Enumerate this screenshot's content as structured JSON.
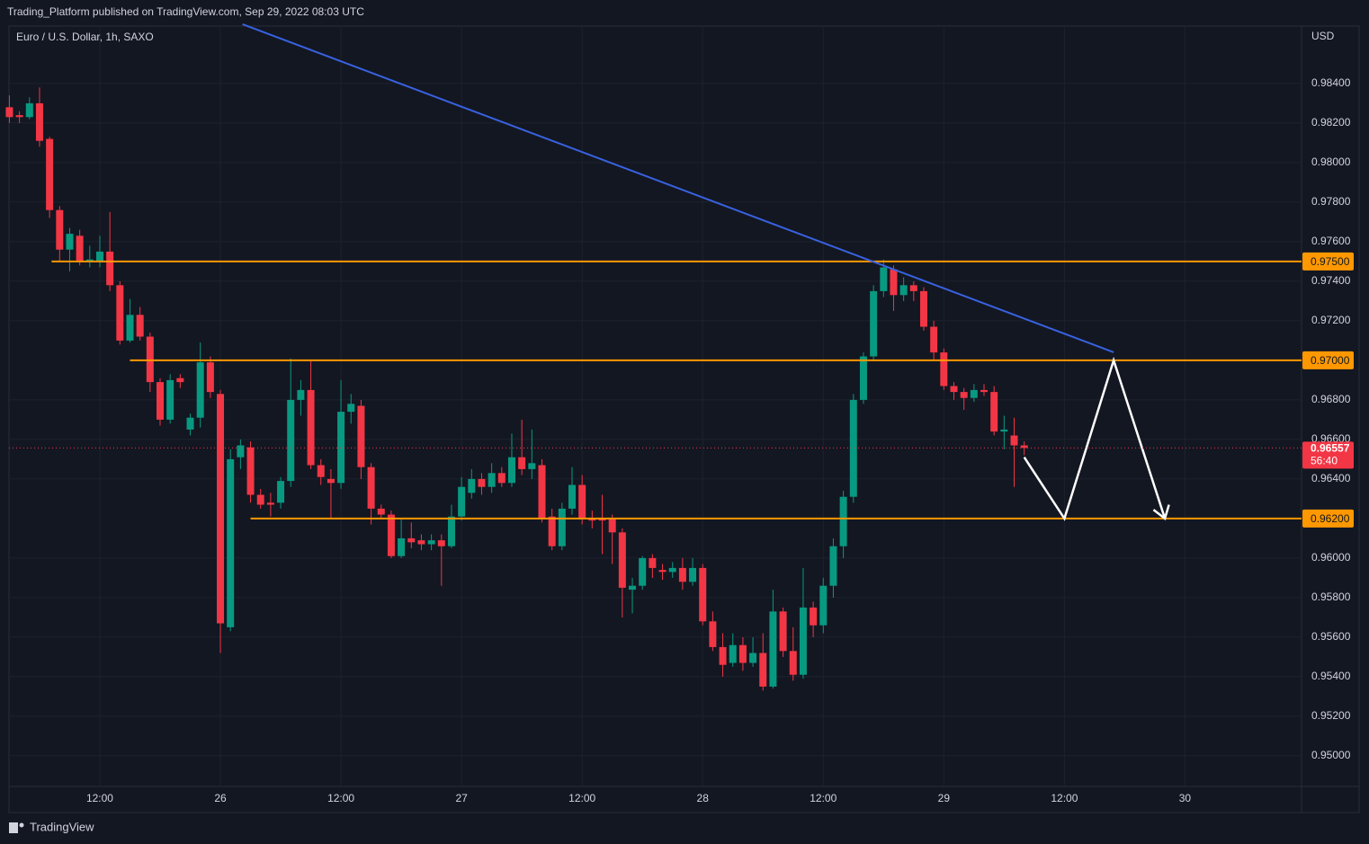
{
  "header": {
    "published": "Trading_Platform published on TradingView.com, Sep 29, 2022 08:03 UTC",
    "brand": "TradingView"
  },
  "chart_data": {
    "type": "candlestick",
    "symbol": "Euro / U.S. Dollar, 1h, SAXO",
    "currency": "USD",
    "up_color": "#089981",
    "down_color": "#f23645",
    "x": [
      3,
      4,
      5,
      6,
      7,
      8,
      9,
      10,
      11,
      12,
      13,
      14,
      15,
      16,
      17,
      18,
      19,
      20,
      21,
      22,
      23,
      24,
      25,
      26,
      27,
      28,
      29,
      30,
      31,
      32,
      33,
      34,
      35,
      36,
      37,
      38,
      39,
      40,
      41,
      42,
      43,
      44,
      45,
      46,
      47,
      48,
      49,
      50,
      51,
      52,
      53,
      54,
      55,
      56,
      57,
      58,
      59,
      60,
      61,
      62,
      63,
      64,
      65,
      66,
      67,
      68,
      69,
      70,
      71,
      72,
      73,
      74,
      75,
      76,
      77,
      78,
      79,
      80,
      81,
      82,
      83,
      84,
      85,
      86,
      87,
      88,
      89,
      90,
      91,
      92,
      93,
      94,
      95,
      96,
      97,
      98,
      99,
      100,
      101,
      102,
      103,
      104
    ],
    "open": [
      0.9828,
      0.9824,
      0.9823,
      0.983,
      0.9812,
      0.9776,
      0.9756,
      0.9763,
      0.975,
      0.975,
      0.9755,
      0.9738,
      0.971,
      0.9723,
      0.9712,
      0.9689,
      0.967,
      0.9691,
      0.9665,
      0.9671,
      0.9699,
      0.9683,
      0.9565,
      0.9651,
      0.9656,
      0.9632,
      0.9628,
      0.9628,
      0.9639,
      0.968,
      0.9685,
      0.9647,
      0.964,
      0.9638,
      0.9674,
      0.9677,
      0.9646,
      0.9625,
      0.9622,
      0.9601,
      0.961,
      0.9609,
      0.9607,
      0.9609,
      0.9606,
      0.9621,
      0.9633,
      0.964,
      0.9636,
      0.9643,
      0.9638,
      0.9651,
      0.9645,
      0.9647,
      0.9621,
      0.9606,
      0.9625,
      0.9637,
      0.962,
      0.962,
      0.962,
      0.9613,
      0.9584,
      0.9586,
      0.96,
      0.9594,
      0.9593,
      0.9595,
      0.9588,
      0.9595,
      0.9568,
      0.9555,
      0.9547,
      0.9556,
      0.9547,
      0.9552,
      0.9535,
      0.9573,
      0.9553,
      0.9541,
      0.9575,
      0.9566,
      0.9586,
      0.9606,
      0.9631,
      0.968,
      0.9702,
      0.9735,
      0.9746,
      0.9733,
      0.9738,
      0.9735,
      0.9717,
      0.9704,
      0.9687,
      0.9684,
      0.9681,
      0.9685,
      0.9684,
      0.9664,
      0.9662,
      0.9657
    ],
    "high": [
      0.9834,
      0.9826,
      0.9833,
      0.9838,
      0.9813,
      0.9778,
      0.9767,
      0.9766,
      0.9758,
      0.9763,
      0.9775,
      0.974,
      0.9731,
      0.9727,
      0.9714,
      0.9691,
      0.9693,
      0.9693,
      0.9673,
      0.9709,
      0.9702,
      0.9685,
      0.9655,
      0.966,
      0.9659,
      0.9635,
      0.9633,
      0.9641,
      0.9701,
      0.969,
      0.97,
      0.965,
      0.9645,
      0.969,
      0.9683,
      0.968,
      0.9648,
      0.9627,
      0.9624,
      0.962,
      0.9618,
      0.9612,
      0.9612,
      0.9612,
      0.9627,
      0.9641,
      0.9645,
      0.9643,
      0.9648,
      0.9646,
      0.9663,
      0.967,
      0.9665,
      0.965,
      0.9625,
      0.9628,
      0.9646,
      0.9642,
      0.9624,
      0.9632,
      0.9622,
      0.9615,
      0.959,
      0.9601,
      0.9602,
      0.9597,
      0.9598,
      0.96,
      0.96,
      0.9597,
      0.9573,
      0.9562,
      0.9562,
      0.956,
      0.956,
      0.9562,
      0.9584,
      0.9575,
      0.9565,
      0.9595,
      0.9578,
      0.959,
      0.961,
      0.9634,
      0.9683,
      0.9704,
      0.9738,
      0.9751,
      0.9748,
      0.9742,
      0.974,
      0.9737,
      0.972,
      0.9706,
      0.9689,
      0.9686,
      0.9688,
      0.9688,
      0.9687,
      0.9672,
      0.9671,
      0.9659
    ],
    "low": [
      0.982,
      0.982,
      0.9822,
      0.9808,
      0.9772,
      0.975,
      0.9745,
      0.9748,
      0.9747,
      0.9747,
      0.9735,
      0.9708,
      0.9709,
      0.971,
      0.9684,
      0.9667,
      0.9668,
      0.9686,
      0.9662,
      0.9666,
      0.9681,
      0.9552,
      0.9563,
      0.9645,
      0.9628,
      0.9625,
      0.9621,
      0.9625,
      0.9636,
      0.9672,
      0.9645,
      0.9637,
      0.962,
      0.9635,
      0.9668,
      0.964,
      0.9617,
      0.962,
      0.96,
      0.96,
      0.9605,
      0.9604,
      0.9604,
      0.9586,
      0.9605,
      0.9619,
      0.963,
      0.9632,
      0.9633,
      0.9636,
      0.9636,
      0.9642,
      0.964,
      0.9618,
      0.9604,
      0.9604,
      0.9622,
      0.9617,
      0.9615,
      0.9602,
      0.9597,
      0.957,
      0.9572,
      0.9584,
      0.959,
      0.9589,
      0.959,
      0.9584,
      0.9586,
      0.9566,
      0.9553,
      0.954,
      0.9545,
      0.9543,
      0.9545,
      0.9533,
      0.9534,
      0.955,
      0.9538,
      0.9539,
      0.956,
      0.9562,
      0.958,
      0.96,
      0.9628,
      0.9678,
      0.97,
      0.9732,
      0.9725,
      0.973,
      0.973,
      0.9715,
      0.97,
      0.9685,
      0.968,
      0.9675,
      0.9679,
      0.9682,
      0.9662,
      0.9655,
      0.9636,
      0.9652
    ],
    "close": [
      0.9823,
      0.9823,
      0.983,
      0.9811,
      0.9776,
      0.9756,
      0.9764,
      0.975,
      0.9751,
      0.9755,
      0.9738,
      0.971,
      0.9723,
      0.9712,
      0.9689,
      0.967,
      0.969,
      0.9689,
      0.9671,
      0.9699,
      0.9684,
      0.9567,
      0.965,
      0.9657,
      0.9632,
      0.9627,
      0.9627,
      0.9639,
      0.968,
      0.9685,
      0.9647,
      0.9641,
      0.9638,
      0.9674,
      0.9678,
      0.9646,
      0.9625,
      0.9622,
      0.9601,
      0.961,
      0.9608,
      0.9607,
      0.9609,
      0.9606,
      0.9621,
      0.9636,
      0.964,
      0.9636,
      0.9643,
      0.9638,
      0.9651,
      0.9645,
      0.9648,
      0.962,
      0.9606,
      0.9625,
      0.9637,
      0.962,
      0.9619,
      0.9619,
      0.9613,
      0.9585,
      0.9586,
      0.96,
      0.9595,
      0.9593,
      0.9595,
      0.9588,
      0.9595,
      0.9568,
      0.9555,
      0.9546,
      0.9556,
      0.9547,
      0.9552,
      0.9535,
      0.9573,
      0.9553,
      0.9541,
      0.9575,
      0.9566,
      0.9586,
      0.9606,
      0.9631,
      0.968,
      0.9702,
      0.9735,
      0.9747,
      0.9733,
      0.9738,
      0.9735,
      0.9717,
      0.9704,
      0.9687,
      0.9684,
      0.9681,
      0.9685,
      0.9684,
      0.9664,
      0.9665,
      0.9657,
      0.96557
    ],
    "xlim": [
      2.96,
      131.6
    ],
    "ylim": [
      0.94845,
      0.98686
    ],
    "xticks": [
      {
        "value": 12,
        "label": "12:00"
      },
      {
        "value": 24,
        "label": "26"
      },
      {
        "value": 36,
        "label": "12:00"
      },
      {
        "value": 48,
        "label": "27"
      },
      {
        "value": 60,
        "label": "12:00"
      },
      {
        "value": 72,
        "label": "28"
      },
      {
        "value": 84,
        "label": "12:00"
      },
      {
        "value": 96,
        "label": "29"
      },
      {
        "value": 108,
        "label": "12:00"
      },
      {
        "value": 120,
        "label": "30"
      }
    ],
    "yticks": [
      {
        "value": 0.95,
        "label": "0.95000"
      },
      {
        "value": 0.952,
        "label": "0.95200"
      },
      {
        "value": 0.954,
        "label": "0.95400"
      },
      {
        "value": 0.956,
        "label": "0.95600"
      },
      {
        "value": 0.958,
        "label": "0.95800"
      },
      {
        "value": 0.96,
        "label": "0.96000"
      },
      {
        "value": 0.964,
        "label": "0.96400"
      },
      {
        "value": 0.966,
        "label": "0.96600"
      },
      {
        "value": 0.968,
        "label": "0.96800"
      },
      {
        "value": 0.972,
        "label": "0.97200"
      },
      {
        "value": 0.974,
        "label": "0.97400"
      },
      {
        "value": 0.976,
        "label": "0.97600"
      },
      {
        "value": 0.978,
        "label": "0.97800"
      },
      {
        "value": 0.98,
        "label": "0.98000"
      },
      {
        "value": 0.982,
        "label": "0.98200"
      },
      {
        "value": 0.984,
        "label": "0.98400"
      }
    ],
    "grid": true,
    "last_price": 0.96557,
    "countdown": "56:40",
    "levels": [
      {
        "value": 0.975,
        "label": "0.97500",
        "start": 7.2
      },
      {
        "value": 0.97,
        "label": "0.97000",
        "start": 15
      },
      {
        "value": 0.962,
        "label": "0.96200",
        "start": 27
      }
    ],
    "level_color": "#ff9800",
    "trend_line": {
      "x": [
        26.2,
        112.9
      ],
      "y": [
        0.987,
        0.97041
      ],
      "color": "#3862e0"
    },
    "projection": {
      "x": [
        104,
        108,
        112.9,
        118
      ],
      "y": [
        0.9651,
        0.962,
        0.97,
        0.962
      ],
      "color": "#ffffff"
    }
  }
}
